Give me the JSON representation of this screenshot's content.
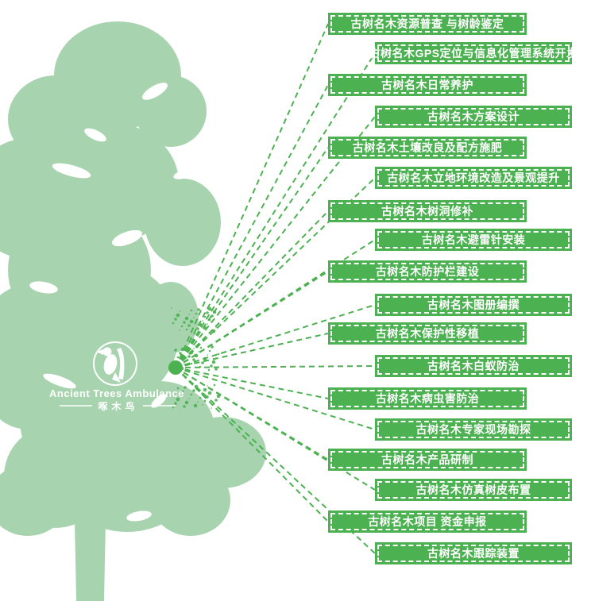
{
  "logo": {
    "name_en": "Ancient Trees Ambulance",
    "name_zh": "啄木鸟"
  },
  "colors": {
    "accent_green": "#4CB151",
    "tree_green": "#A7D4AE",
    "text_white": "#FFFFFF"
  },
  "services": [
    "古树名木资源普查 与树龄鉴定",
    "古树名木GPS定位与信息化管理系统开发",
    "古树名木日常养护",
    "古树名木方案设计",
    "古树名木土壤改良及配方施肥",
    "古树名木立地环境改造及景观提升",
    "古树名木树洞修补",
    "古树名木避雷针安装",
    "古树名木防护栏建设",
    "古树名木图册编撰",
    "古树名木保护性移植",
    "古树名木白蚁防治",
    "古树名木病虫害防治",
    "古树名木专家现场勘探",
    "古树名木产品研制",
    "古树名木仿真树皮布置",
    "古树名木项目 资金申报",
    "古树名木跟踪装置"
  ]
}
